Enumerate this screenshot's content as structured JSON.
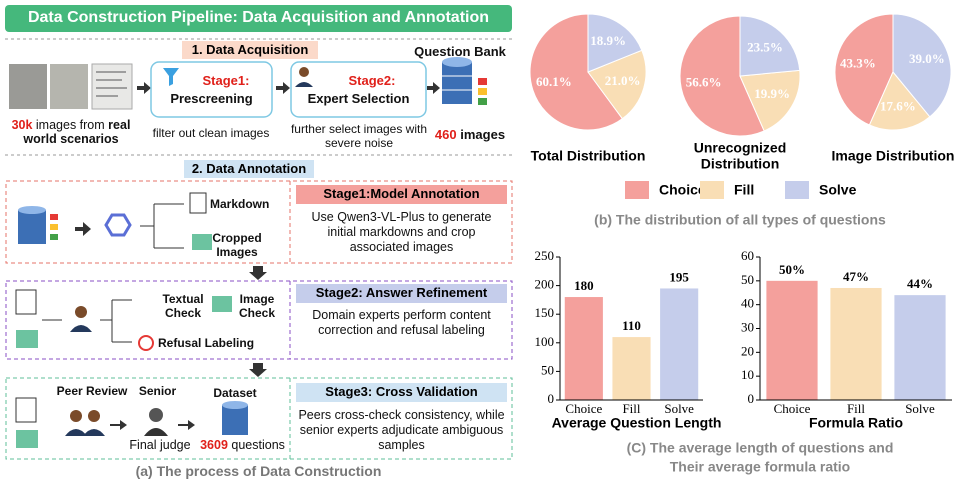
{
  "diagram": {
    "title": "Data Construction Pipeline: Data Acquisition and Annotation",
    "acquisition": {
      "heading": "1. Data Acquisition",
      "bank": "Question Bank",
      "source": {
        "count": "30k",
        "text": "images from",
        "emph": "real world scenarios"
      },
      "stage1": {
        "label": "Stage1:",
        "name": "Prescreening",
        "note": "filter out clean images"
      },
      "stage2": {
        "label": "Stage2:",
        "name": "Expert Selection",
        "note": "further select images with severe noise"
      },
      "result": {
        "count": "460",
        "text": "images"
      }
    },
    "annotation": {
      "heading": "2. Data Annotation",
      "stages": [
        {
          "header": "Stage1:Model Annotation",
          "description": "Use Qwen3-VL-Plus to generate initial markdowns and crop  associated images",
          "outputs": [
            "Markdown",
            "Cropped Images"
          ]
        },
        {
          "header": "Stage2:  Answer Refinement",
          "description": "Domain experts perform content correction and refusal labeling",
          "outputs": [
            "Textual Check",
            "Image Check",
            "Refusal Labeling"
          ]
        },
        {
          "header": "Stage3:  Cross Validation",
          "description": "Peers cross-check consistency, while senior experts adjudicate ambiguous samples",
          "roles": [
            "Peer Review",
            "Senior",
            "Dataset"
          ],
          "judge": "Final judge",
          "count": "3609",
          "unit": "questions"
        }
      ]
    },
    "caption": "(a) The process of Data Construction"
  },
  "chart_data": [
    {
      "type": "pie",
      "categories": [
        "Choice",
        "Fill",
        "Solve"
      ],
      "colors": [
        "#f4a09c",
        "#f9deb5",
        "#c5cdeb"
      ],
      "pies": [
        {
          "title": [
            "Total Distribution"
          ],
          "values": [
            60.1,
            21.0,
            18.9
          ],
          "value_labels": [
            "60.1%",
            "21.0%",
            "18.9%"
          ]
        },
        {
          "title": [
            "Unrecognized",
            "Distribution"
          ],
          "values": [
            56.6,
            19.9,
            23.5
          ],
          "value_labels": [
            "56.6%",
            "19.9%",
            "23.5%"
          ]
        },
        {
          "title": [
            "Image Distribution"
          ],
          "values": [
            43.3,
            17.6,
            39.0
          ],
          "value_labels": [
            "43.3%",
            "17.6%",
            "39.0%"
          ]
        }
      ],
      "caption": "(b) The distribution of all types of questions"
    },
    {
      "type": "bar",
      "xlabel": "Average Question Length",
      "categories": [
        "Choice",
        "Fill",
        "Solve"
      ],
      "values": [
        180,
        110,
        195
      ],
      "colors": [
        "#f4a09c",
        "#f9deb5",
        "#c5cdeb"
      ],
      "ylim": [
        0,
        250
      ],
      "yticks": [
        0,
        50,
        100,
        150,
        200,
        250
      ]
    },
    {
      "type": "bar",
      "xlabel": "Formula Ratio",
      "categories": [
        "Choice",
        "Fill",
        "Solve"
      ],
      "values": [
        50,
        47,
        44
      ],
      "value_labels": [
        "50%",
        "47%",
        "44%"
      ],
      "colors": [
        "#f4a09c",
        "#f9deb5",
        "#c5cdeb"
      ],
      "ylim": [
        0,
        60
      ],
      "yticks": [
        0,
        10,
        20,
        30,
        40,
        50,
        60
      ]
    }
  ],
  "bar_caption": [
    "(C) The average length of questions and",
    "Their average formula ratio"
  ]
}
